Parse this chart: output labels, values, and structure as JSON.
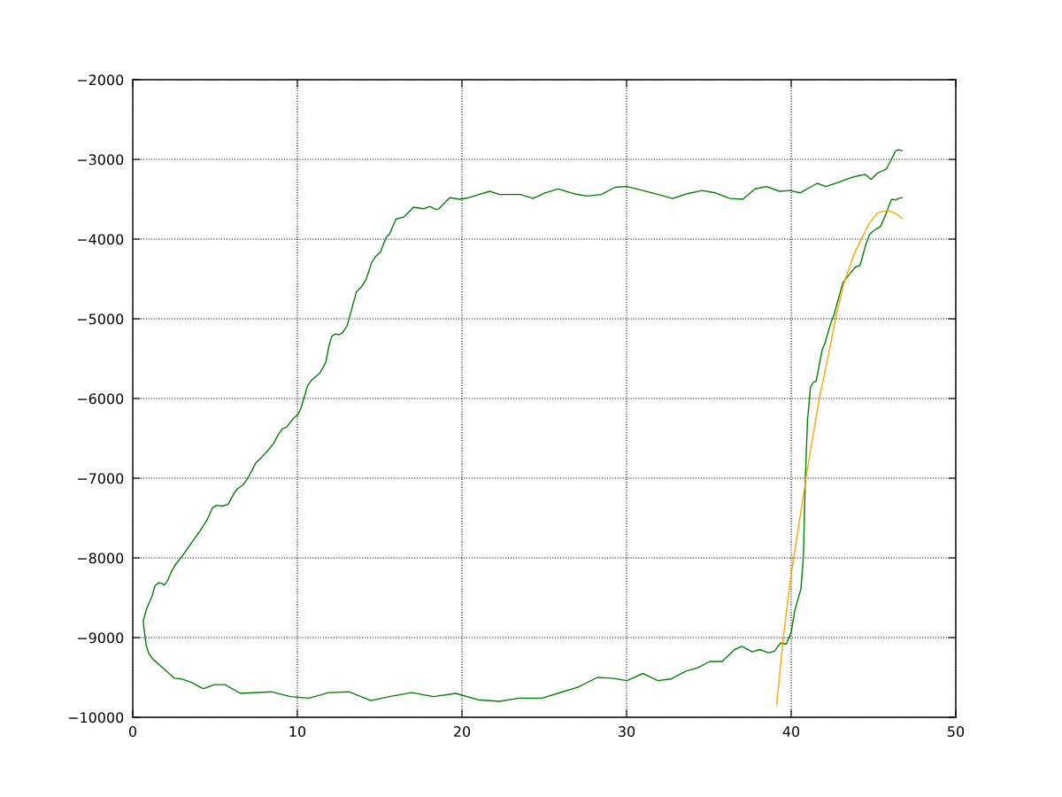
{
  "chart_data": {
    "type": "line",
    "xlim": [
      0,
      50
    ],
    "ylim": [
      -10000,
      -2000
    ],
    "xticks": [
      0,
      10,
      20,
      30,
      40,
      50
    ],
    "yticks": [
      -10000,
      -9000,
      -8000,
      -7000,
      -6000,
      -5000,
      -4000,
      -3000,
      -2000
    ],
    "grid": true,
    "series": [
      {
        "color": "#008000",
        "x": [
          46.74,
          46.51,
          46.33,
          45.79,
          45.25,
          44.86,
          44.5,
          44.18,
          43.64,
          42.83,
          42.11,
          41.58,
          40.54,
          39.93,
          39.28,
          38.49,
          37.81,
          37.06,
          36.29,
          35.39,
          34.59,
          33.69,
          32.8,
          31.0,
          30.02,
          29.3,
          28.46,
          27.56,
          26.79,
          25.84,
          25.04,
          24.32,
          23.57,
          22.28,
          21.68,
          20.43,
          19.89,
          19.26,
          18.6,
          18.42,
          18.05,
          17.65,
          17.06,
          16.49,
          15.99,
          15.59,
          15.41,
          15.05,
          14.75,
          14.52,
          14.17,
          13.89,
          13.59,
          13.02,
          12.72,
          12.53,
          12.3,
          12.09,
          11.91,
          11.72,
          11.37,
          10.86,
          10.62,
          10.22,
          10.04,
          9.76,
          9.53,
          9.34,
          9.1,
          8.87,
          8.57,
          8.22,
          7.82,
          7.47,
          7.07,
          6.72,
          6.37,
          6.18,
          5.79,
          5.44,
          5.09,
          4.85,
          4.5,
          4.09,
          3.03,
          2.61,
          2.33,
          2.1,
          1.92,
          1.77,
          1.59,
          1.35,
          1.17,
          0.82,
          0.63,
          0.82,
          0.98,
          1.22,
          1.45,
          2.38,
          2.52,
          2.99,
          3.55,
          4.16,
          4.32,
          4.95,
          5.6,
          6.54,
          8.4,
          9.57,
          10.7,
          11.91,
          13.12,
          14.47,
          15.59,
          16.94,
          18.28,
          19.62,
          20.97,
          22.26,
          23.48,
          24.86,
          25.81,
          27.06,
          28.23,
          29.12,
          30.02,
          31.0,
          31.9,
          32.7,
          33.6,
          34.32,
          35.04,
          35.81,
          36.56,
          37.01,
          37.63,
          38.08,
          38.62,
          38.98,
          39.34,
          39.7,
          40.0,
          40.23,
          40.59,
          40.74,
          40.86,
          40.99,
          41.17,
          41.34,
          41.52,
          41.88,
          42.06,
          42.38,
          42.6,
          43.15,
          43.55,
          43.91,
          44.18,
          44.53,
          44.77,
          44.98,
          45.43,
          45.79,
          45.97,
          46.11,
          46.36,
          46.51,
          46.74
        ],
        "values": [
          -2890,
          -2880,
          -2900,
          -3120,
          -3170,
          -3250,
          -3190,
          -3200,
          -3230,
          -3290,
          -3340,
          -3300,
          -3420,
          -3390,
          -3400,
          -3340,
          -3370,
          -3500,
          -3490,
          -3420,
          -3390,
          -3430,
          -3490,
          -3390,
          -3340,
          -3350,
          -3440,
          -3460,
          -3430,
          -3370,
          -3420,
          -3490,
          -3440,
          -3440,
          -3400,
          -3480,
          -3500,
          -3480,
          -3620,
          -3630,
          -3590,
          -3620,
          -3600,
          -3720,
          -3750,
          -3940,
          -3970,
          -4160,
          -4220,
          -4290,
          -4510,
          -4600,
          -4660,
          -5090,
          -5180,
          -5200,
          -5190,
          -5220,
          -5350,
          -5550,
          -5680,
          -5770,
          -5840,
          -6120,
          -6200,
          -6250,
          -6310,
          -6360,
          -6380,
          -6440,
          -6560,
          -6650,
          -6740,
          -6810,
          -6970,
          -7080,
          -7130,
          -7180,
          -7330,
          -7350,
          -7340,
          -7370,
          -7530,
          -7660,
          -7970,
          -8080,
          -8180,
          -8290,
          -8340,
          -8320,
          -8310,
          -8350,
          -8480,
          -8650,
          -8800,
          -9100,
          -9200,
          -9270,
          -9310,
          -9480,
          -9510,
          -9520,
          -9560,
          -9630,
          -9640,
          -9590,
          -9590,
          -9700,
          -9680,
          -9740,
          -9760,
          -9690,
          -9680,
          -9790,
          -9740,
          -9690,
          -9740,
          -9700,
          -9780,
          -9800,
          -9760,
          -9760,
          -9700,
          -9620,
          -9500,
          -9510,
          -9540,
          -9450,
          -9540,
          -9520,
          -9420,
          -9380,
          -9300,
          -9300,
          -9150,
          -9110,
          -9180,
          -9150,
          -9190,
          -9170,
          -9070,
          -9080,
          -8930,
          -8650,
          -8390,
          -7980,
          -7000,
          -6280,
          -5860,
          -5800,
          -5780,
          -5390,
          -5300,
          -5070,
          -4950,
          -4540,
          -4440,
          -4350,
          -4330,
          -4070,
          -3940,
          -3900,
          -3840,
          -3670,
          -3560,
          -3500,
          -3510,
          -3490,
          -3480
        ]
      },
      {
        "color": "#ffa500",
        "x": [
          39.12,
          39.52,
          39.96,
          40.23,
          40.68,
          41.13,
          41.7,
          42.2,
          42.69,
          43.19,
          43.82,
          44.71,
          44.98,
          45.25,
          45.43,
          45.88,
          46.27,
          46.74
        ],
        "values": [
          -9840,
          -9000,
          -8260,
          -7890,
          -7300,
          -6700,
          -6000,
          -5520,
          -5000,
          -4560,
          -4190,
          -3810,
          -3740,
          -3670,
          -3660,
          -3640,
          -3670,
          -3740
        ]
      }
    ]
  }
}
